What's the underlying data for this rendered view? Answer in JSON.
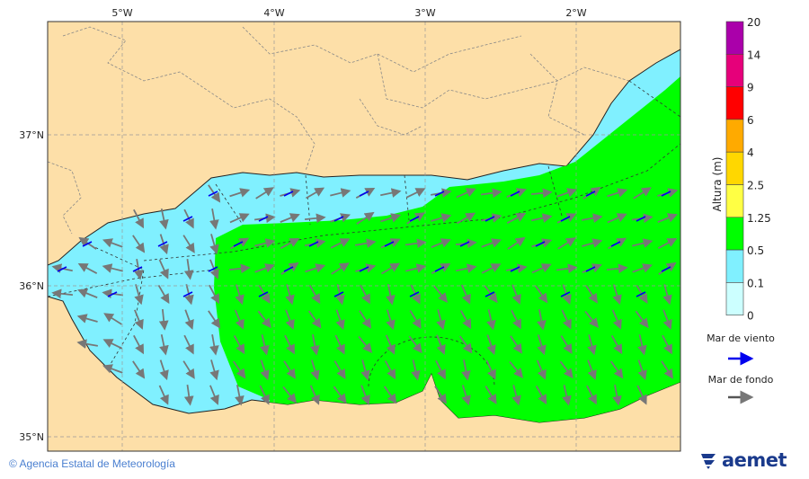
{
  "map": {
    "lon_labels": [
      "5°W",
      "4°W",
      "3°W",
      "2°W"
    ],
    "lat_labels": [
      "37°N",
      "36°N",
      "35°N"
    ],
    "colors": {
      "land": "#fddfa8",
      "sea_low": "#80f0ff",
      "sea_mid": "#00ff00",
      "wind_arrow": "#0000ee",
      "swell_arrow": "#777777"
    }
  },
  "legend": {
    "title": "Altura (m)",
    "ticks": [
      "20",
      "14",
      "9",
      "6",
      "4",
      "2.5",
      "1.25",
      "0.5",
      "0.1",
      "0"
    ],
    "bands": [
      {
        "range": "14-20",
        "color": "#aa00aa"
      },
      {
        "range": "9-14",
        "color": "#e6007a"
      },
      {
        "range": "6-9",
        "color": "#ff0000"
      },
      {
        "range": "4-6",
        "color": "#ffaa00"
      },
      {
        "range": "2.5-4",
        "color": "#ffd700"
      },
      {
        "range": "1.25-2.5",
        "color": "#ffff44"
      },
      {
        "range": "0.5-1.25",
        "color": "#00ff00"
      },
      {
        "range": "0.1-0.5",
        "color": "#80f0ff"
      },
      {
        "range": "0-0.1",
        "color": "#ccffff"
      }
    ],
    "wind_sea_label": "Mar de viento",
    "swell_label": "Mar de fondo"
  },
  "footer": {
    "credit": "Agencia Estatal de Meteorología",
    "logo_text": "aemet"
  }
}
